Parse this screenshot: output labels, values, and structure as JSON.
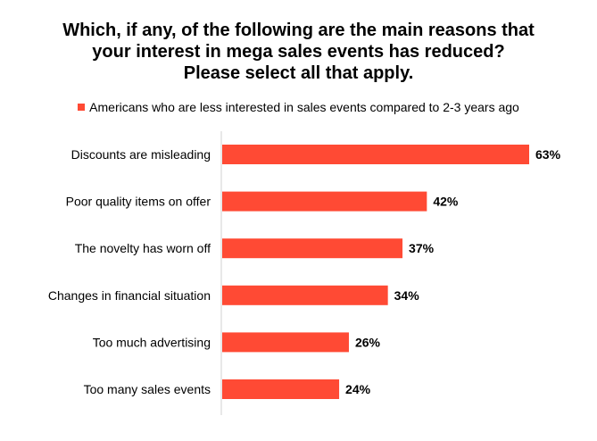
{
  "chart_data": {
    "type": "bar",
    "orientation": "horizontal",
    "title": [
      "Which, if any, of the following are the main reasons that",
      "your interest in mega sales events has reduced?",
      "Please select all that apply."
    ],
    "legend_position": "top",
    "grid": false,
    "categories": [
      "Discounts are misleading",
      "Poor quality items on offer",
      "The novelty has worn off",
      "Changes in financial situation",
      "Too much advertising",
      "Too many sales events"
    ],
    "series": [
      {
        "name": "Americans who are less interested in sales events compared to 2-3 years ago",
        "values": [
          63,
          42,
          37,
          34,
          26,
          24
        ],
        "color": "#ff4a34"
      }
    ],
    "value_labels": [
      "63%",
      "42%",
      "37%",
      "34%",
      "26%",
      "24%"
    ],
    "xlim": [
      0,
      63
    ]
  }
}
